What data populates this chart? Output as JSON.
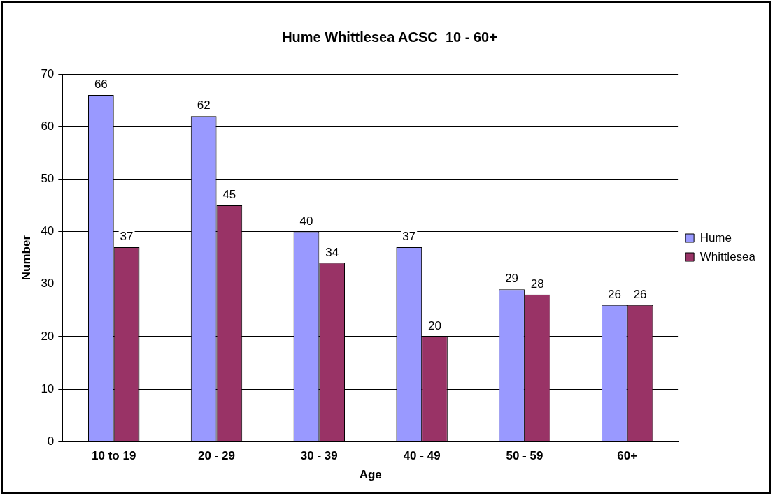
{
  "chart_data": {
    "type": "bar",
    "title": "Hume Whittlesea ACSC  10 - 60+",
    "xlabel": "Age",
    "ylabel": "Number",
    "categories": [
      "10 to 19",
      "20 - 29",
      "30 - 39",
      "40 - 49",
      "50 - 59",
      "60+"
    ],
    "series": [
      {
        "name": "Hume",
        "color": "#9999ff",
        "values": [
          66,
          62,
          40,
          37,
          29,
          26
        ]
      },
      {
        "name": "Whittlesea",
        "color": "#993366",
        "values": [
          37,
          45,
          34,
          20,
          28,
          26
        ]
      }
    ],
    "ylim": [
      0,
      70
    ],
    "yticks": [
      0,
      10,
      20,
      30,
      40,
      50,
      60,
      70
    ],
    "grid": "y",
    "legend": "right",
    "data_labels": true
  }
}
